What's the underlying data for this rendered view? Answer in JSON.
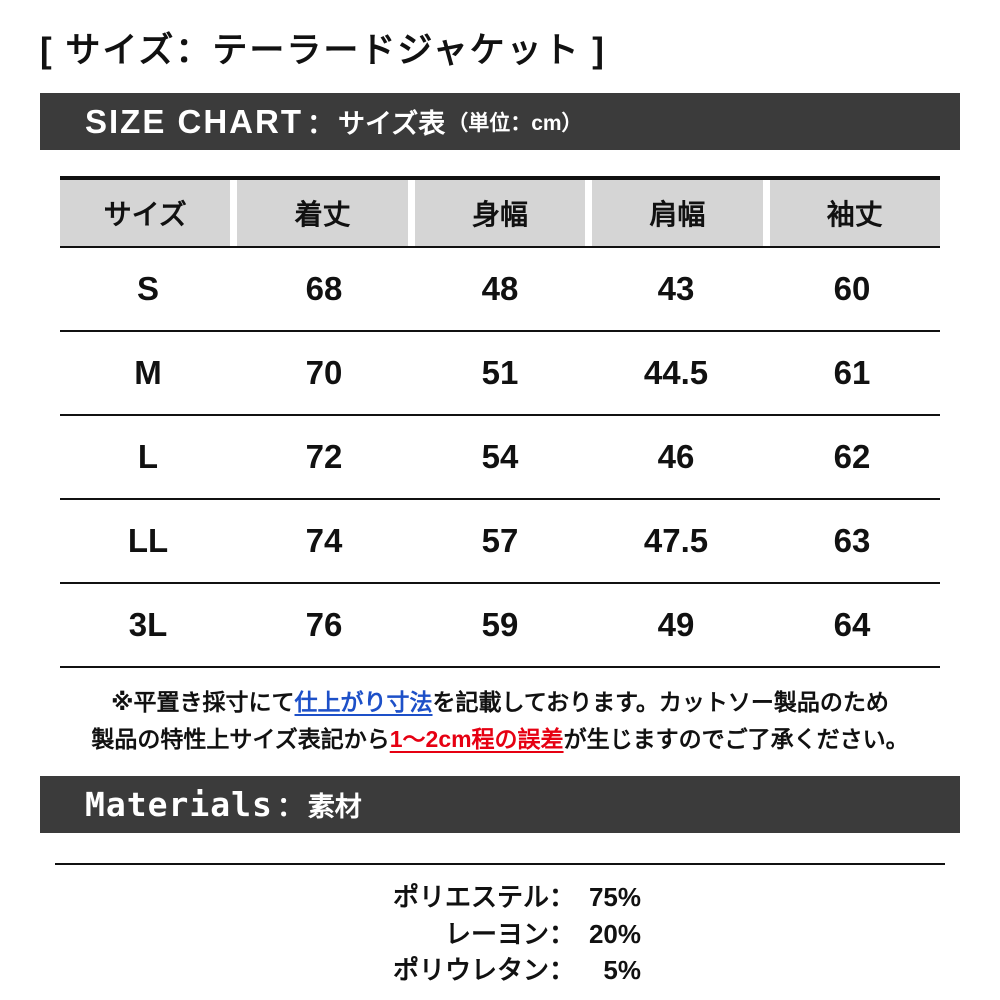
{
  "colors": {
    "banner_bg": "#3b3b3b",
    "table_header_gray": "#d5d5d5",
    "note_blue": "#1d50c8",
    "note_red": "#e60012"
  },
  "page_title": "[ サイズ：テーラードジャケット ]",
  "size_chart": {
    "banner": {
      "title_en": "SIZE CHART",
      "separator": "：",
      "title_ja": "サイズ表",
      "unit": "（単位：cm）"
    },
    "table": {
      "headers": [
        "サイズ",
        "着丈",
        "身幅",
        "肩幅",
        "袖丈"
      ],
      "rows": [
        {
          "size": "S",
          "values": [
            "68",
            "48",
            "43",
            "60"
          ]
        },
        {
          "size": "M",
          "values": [
            "70",
            "51",
            "44.5",
            "61"
          ]
        },
        {
          "size": "L",
          "values": [
            "72",
            "54",
            "46",
            "62"
          ]
        },
        {
          "size": "LL",
          "values": [
            "74",
            "57",
            "47.5",
            "63"
          ]
        },
        {
          "size": "3L",
          "values": [
            "76",
            "59",
            "49",
            "64"
          ]
        }
      ]
    },
    "note": {
      "seg1": "※平置き採寸にて",
      "highlight_blue": "仕上がり寸法",
      "seg2": "を記載しております。カットソー製品のため",
      "seg3": "製品の特性上サイズ表記から",
      "highlight_red": "1〜2cm程の誤差",
      "seg4": "が生じますのでご了承ください。"
    }
  },
  "materials": {
    "banner": {
      "title_en": "Materials",
      "separator": "：",
      "title_ja": "素材"
    },
    "separator": "：",
    "items": [
      {
        "name": "ポリエステル",
        "value": "75%"
      },
      {
        "name": "レーヨン",
        "value": "20%"
      },
      {
        "name": "ポリウレタン",
        "value": "5%"
      }
    ]
  }
}
